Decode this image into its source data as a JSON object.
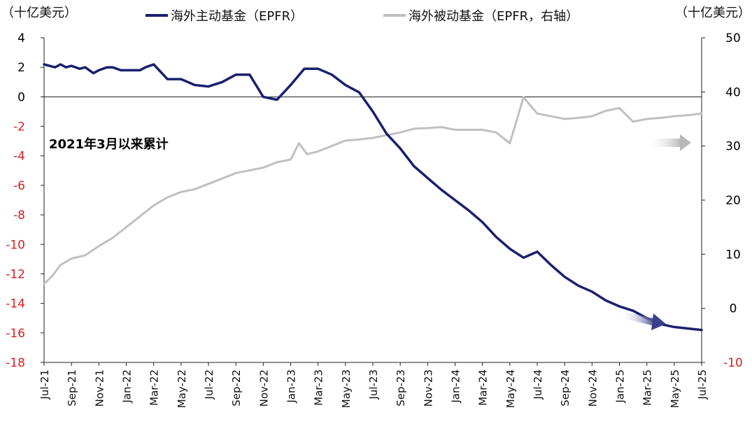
{
  "chart_data": {
    "type": "line",
    "title": "",
    "annotation": "2021年3月以来累计",
    "left_axis": {
      "unit_label": "（十亿美元）",
      "ylim": [
        -18,
        4
      ],
      "ticks": [
        "4",
        "2",
        "0",
        "-2",
        "-4",
        "-6",
        "-8",
        "-10",
        "-12",
        "-14",
        "-16",
        "-18"
      ],
      "tick_values": [
        4,
        2,
        0,
        -2,
        -4,
        -6,
        -8,
        -10,
        -12,
        -14,
        -16,
        -18
      ],
      "positive_color": "#000000",
      "negative_color": "#d42020"
    },
    "right_axis": {
      "unit_label": "（十亿美元）",
      "ylim": [
        -10,
        50
      ],
      "ticks": [
        "50",
        "40",
        "30",
        "20",
        "10",
        "0",
        "-10"
      ],
      "tick_values": [
        50,
        40,
        30,
        20,
        10,
        0,
        -10
      ],
      "positive_color": "#000000",
      "negative_color": "#d42020"
    },
    "x_ticks": [
      "Jul-21",
      "Sep-21",
      "Nov-21",
      "Jan-22",
      "Mar-22",
      "May-22",
      "Jul-22",
      "Sep-22",
      "Nov-22",
      "Jan-23",
      "Mar-23",
      "May-23",
      "Jul-23",
      "Sep-23",
      "Nov-23",
      "Jan-24",
      "Mar-24",
      "May-24",
      "Jul-24",
      "Sep-24",
      "Nov-24",
      "Jan-25",
      "Mar-25",
      "May-25",
      "Jul-25"
    ],
    "legend": {
      "placement": "top"
    },
    "series": [
      {
        "name": "海外主动基金（EPFR）",
        "axis": "left",
        "color": "#1a1f6e",
        "x": [
          0,
          0.4,
          0.6,
          0.8,
          1,
          1.3,
          1.5,
          1.8,
          2,
          2.3,
          2.5,
          2.8,
          3,
          3.3,
          3.5,
          3.7,
          4,
          4.5,
          5,
          5.5,
          6,
          6.5,
          7,
          7.5,
          8,
          8.5,
          9,
          9.5,
          10,
          10.5,
          11,
          11.5,
          12,
          12.5,
          13,
          13.5,
          14,
          14.5,
          15,
          15.5,
          16,
          16.5,
          17,
          17.5,
          18,
          18.5,
          19,
          19.5,
          20,
          20.5,
          21,
          21.5,
          22,
          22.5,
          23,
          23.5,
          24
        ],
        "values": [
          2.2,
          2.0,
          2.2,
          2.0,
          2.1,
          1.9,
          2.0,
          1.6,
          1.8,
          2.0,
          2.0,
          1.8,
          1.8,
          1.8,
          1.8,
          2.0,
          2.2,
          1.2,
          1.2,
          0.8,
          0.7,
          1.0,
          1.5,
          1.5,
          0.0,
          -0.2,
          0.8,
          1.9,
          1.9,
          1.5,
          0.8,
          0.3,
          -1.0,
          -2.5,
          -3.5,
          -4.7,
          -5.5,
          -6.3,
          -7.0,
          -7.7,
          -8.5,
          -9.5,
          -10.3,
          -10.9,
          -10.5,
          -11.4,
          -12.2,
          -12.8,
          -13.2,
          -13.8,
          -14.2,
          -14.5,
          -15.0,
          -15.4,
          -15.6,
          -15.7,
          -15.8
        ]
      },
      {
        "name": "海外被动基金（EPFR，右轴）",
        "axis": "right",
        "color": "#c0c0c0",
        "x": [
          0,
          0.3,
          0.6,
          1,
          1.5,
          2,
          2.5,
          3,
          3.5,
          4,
          4.5,
          5,
          5.5,
          6,
          6.5,
          7,
          7.5,
          8,
          8.5,
          9,
          9.3,
          9.6,
          10,
          10.5,
          11,
          11.5,
          12,
          12.5,
          13,
          13.5,
          14,
          14.5,
          15,
          15.5,
          16,
          16.5,
          17,
          17.5,
          18,
          18.5,
          19,
          19.5,
          20,
          20.5,
          21,
          21.5,
          22,
          22.5,
          23,
          23.5,
          24
        ],
        "values": [
          4.5,
          6,
          8,
          9.2,
          9.8,
          11.5,
          13,
          15,
          17,
          19,
          20.5,
          21.5,
          22,
          23,
          24,
          25,
          25.5,
          26,
          27,
          27.5,
          30.5,
          28.5,
          29,
          30,
          31,
          31.2,
          31.5,
          32,
          32.5,
          33.2,
          33.3,
          33.5,
          33,
          33,
          33,
          32.5,
          30.5,
          39,
          36,
          35.5,
          35,
          35.2,
          35.5,
          36.5,
          37,
          34.5,
          35,
          35.2,
          35.5,
          35.7,
          36
        ]
      }
    ]
  }
}
